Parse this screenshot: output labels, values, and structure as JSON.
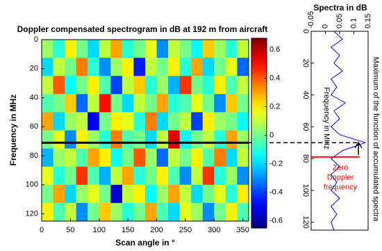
{
  "chart_data": [
    {
      "type": "heatmap",
      "title": "Doppler compensated spectrogram in dB at 192 m from aircraft",
      "xlabel": "Scan angle in °",
      "ylabel": "Frequency in MHz",
      "x": [
        10,
        30,
        50,
        70,
        90,
        110,
        130,
        150,
        170,
        190,
        210,
        230,
        250,
        270,
        290,
        310,
        330,
        350
      ],
      "y": [
        6.25,
        18.75,
        31.25,
        43.75,
        56.25,
        68.75,
        81.25,
        93.75,
        106.25,
        118.75
      ],
      "values": [
        [
          0.05,
          -0.1,
          0.2,
          0.0,
          -0.2,
          0.1,
          0.3,
          -0.1,
          0.0,
          0.15,
          -0.3,
          0.1,
          0.0,
          -0.15,
          0.25,
          0.05,
          -0.1,
          0.1
        ],
        [
          -0.2,
          0.1,
          0.0,
          0.35,
          -0.1,
          -0.3,
          0.05,
          0.2,
          -0.45,
          0.1,
          0.0,
          0.2,
          -0.1,
          0.3,
          -0.2,
          0.0,
          0.15,
          -0.35
        ],
        [
          0.1,
          0.4,
          -0.15,
          0.0,
          0.2,
          -0.05,
          -0.4,
          0.1,
          0.25,
          -0.1,
          0.05,
          -0.25,
          0.45,
          0.0,
          -0.1,
          0.2,
          -0.05,
          0.1
        ],
        [
          -0.05,
          0.0,
          0.25,
          -0.35,
          0.1,
          0.5,
          0.0,
          -0.2,
          0.1,
          0.0,
          0.3,
          -0.1,
          -0.05,
          0.15,
          0.0,
          -0.3,
          0.25,
          0.0
        ],
        [
          0.3,
          -0.2,
          0.05,
          0.1,
          -0.5,
          0.0,
          0.2,
          0.15,
          -0.1,
          0.35,
          -0.2,
          0.0,
          0.1,
          -0.4,
          0.2,
          0.05,
          0.0,
          -0.15
        ],
        [
          0.0,
          0.15,
          -0.3,
          0.2,
          0.05,
          -0.1,
          0.35,
          -0.05,
          0.0,
          -0.2,
          0.1,
          0.55,
          -0.15,
          0.0,
          0.1,
          -0.1,
          0.3,
          0.05
        ],
        [
          -0.25,
          0.05,
          0.1,
          -0.05,
          0.3,
          0.2,
          -0.15,
          0.0,
          0.4,
          0.05,
          -0.35,
          0.1,
          0.0,
          0.2,
          -0.05,
          0.35,
          -0.2,
          0.1
        ],
        [
          0.15,
          -0.1,
          0.0,
          0.45,
          -0.05,
          -0.25,
          0.1,
          0.3,
          -0.1,
          0.0,
          0.2,
          -0.05,
          -0.3,
          0.1,
          0.45,
          -0.1,
          0.05,
          -0.3
        ],
        [
          0.0,
          0.3,
          -0.2,
          0.05,
          0.15,
          0.0,
          -0.55,
          0.1,
          0.2,
          -0.15,
          0.05,
          0.3,
          0.1,
          -0.2,
          0.0,
          0.15,
          -0.1,
          0.2
        ],
        [
          0.2,
          -0.05,
          0.1,
          -0.3,
          0.0,
          0.25,
          0.05,
          -0.1,
          0.0,
          0.3,
          -0.05,
          -0.2,
          0.15,
          0.05,
          -0.3,
          0.0,
          0.2,
          -0.05
        ]
      ],
      "xlim": [
        0,
        360
      ],
      "xticks": [
        0,
        50,
        100,
        150,
        200,
        250,
        300,
        350
      ],
      "ylim": [
        0,
        125
      ],
      "yticks": [
        0,
        20,
        40,
        60,
        80,
        100,
        120
      ],
      "colormap": "jet",
      "clim": [
        -0.65,
        0.68
      ],
      "cticks": [
        -0.6,
        -0.4,
        -0.2,
        0,
        0.2,
        0.4,
        0.6
      ],
      "marker_line": 71
    },
    {
      "type": "line",
      "orientation": "horizontal",
      "title": "Spectra in dB",
      "xlabel": "Frequency in MHz",
      "annotations": [
        "Maximum of the function of accumulated spectra"
      ],
      "zero_doppler_label": [
        "Zero",
        "Doppler",
        "frequency"
      ],
      "zero_doppler": 79,
      "color": "#0000ff",
      "zero_doppler_color": "#ff0000",
      "x": [
        0,
        5,
        10,
        15,
        20,
        25,
        30,
        35,
        40,
        45,
        50,
        55,
        60,
        65,
        70,
        75,
        80,
        85,
        90,
        95,
        100,
        105,
        110,
        115,
        120,
        125
      ],
      "values": [
        0.03,
        0.06,
        0.02,
        0.05,
        0.03,
        0.06,
        0.02,
        0.04,
        0.02,
        0.07,
        0.03,
        0.05,
        0.02,
        0.05,
        0.14,
        0.06,
        0.02,
        0.05,
        0.02,
        0.04,
        0.02,
        0.05,
        0.02,
        0.04,
        0.02,
        0.03
      ],
      "xlim": [
        0,
        125
      ],
      "xticks": [
        0,
        20,
        40,
        60,
        80,
        100,
        120
      ],
      "ylim": [
        -0.05,
        0.15
      ],
      "yticks": [
        -0.05,
        0,
        0.05,
        0.1,
        0.15
      ]
    }
  ]
}
